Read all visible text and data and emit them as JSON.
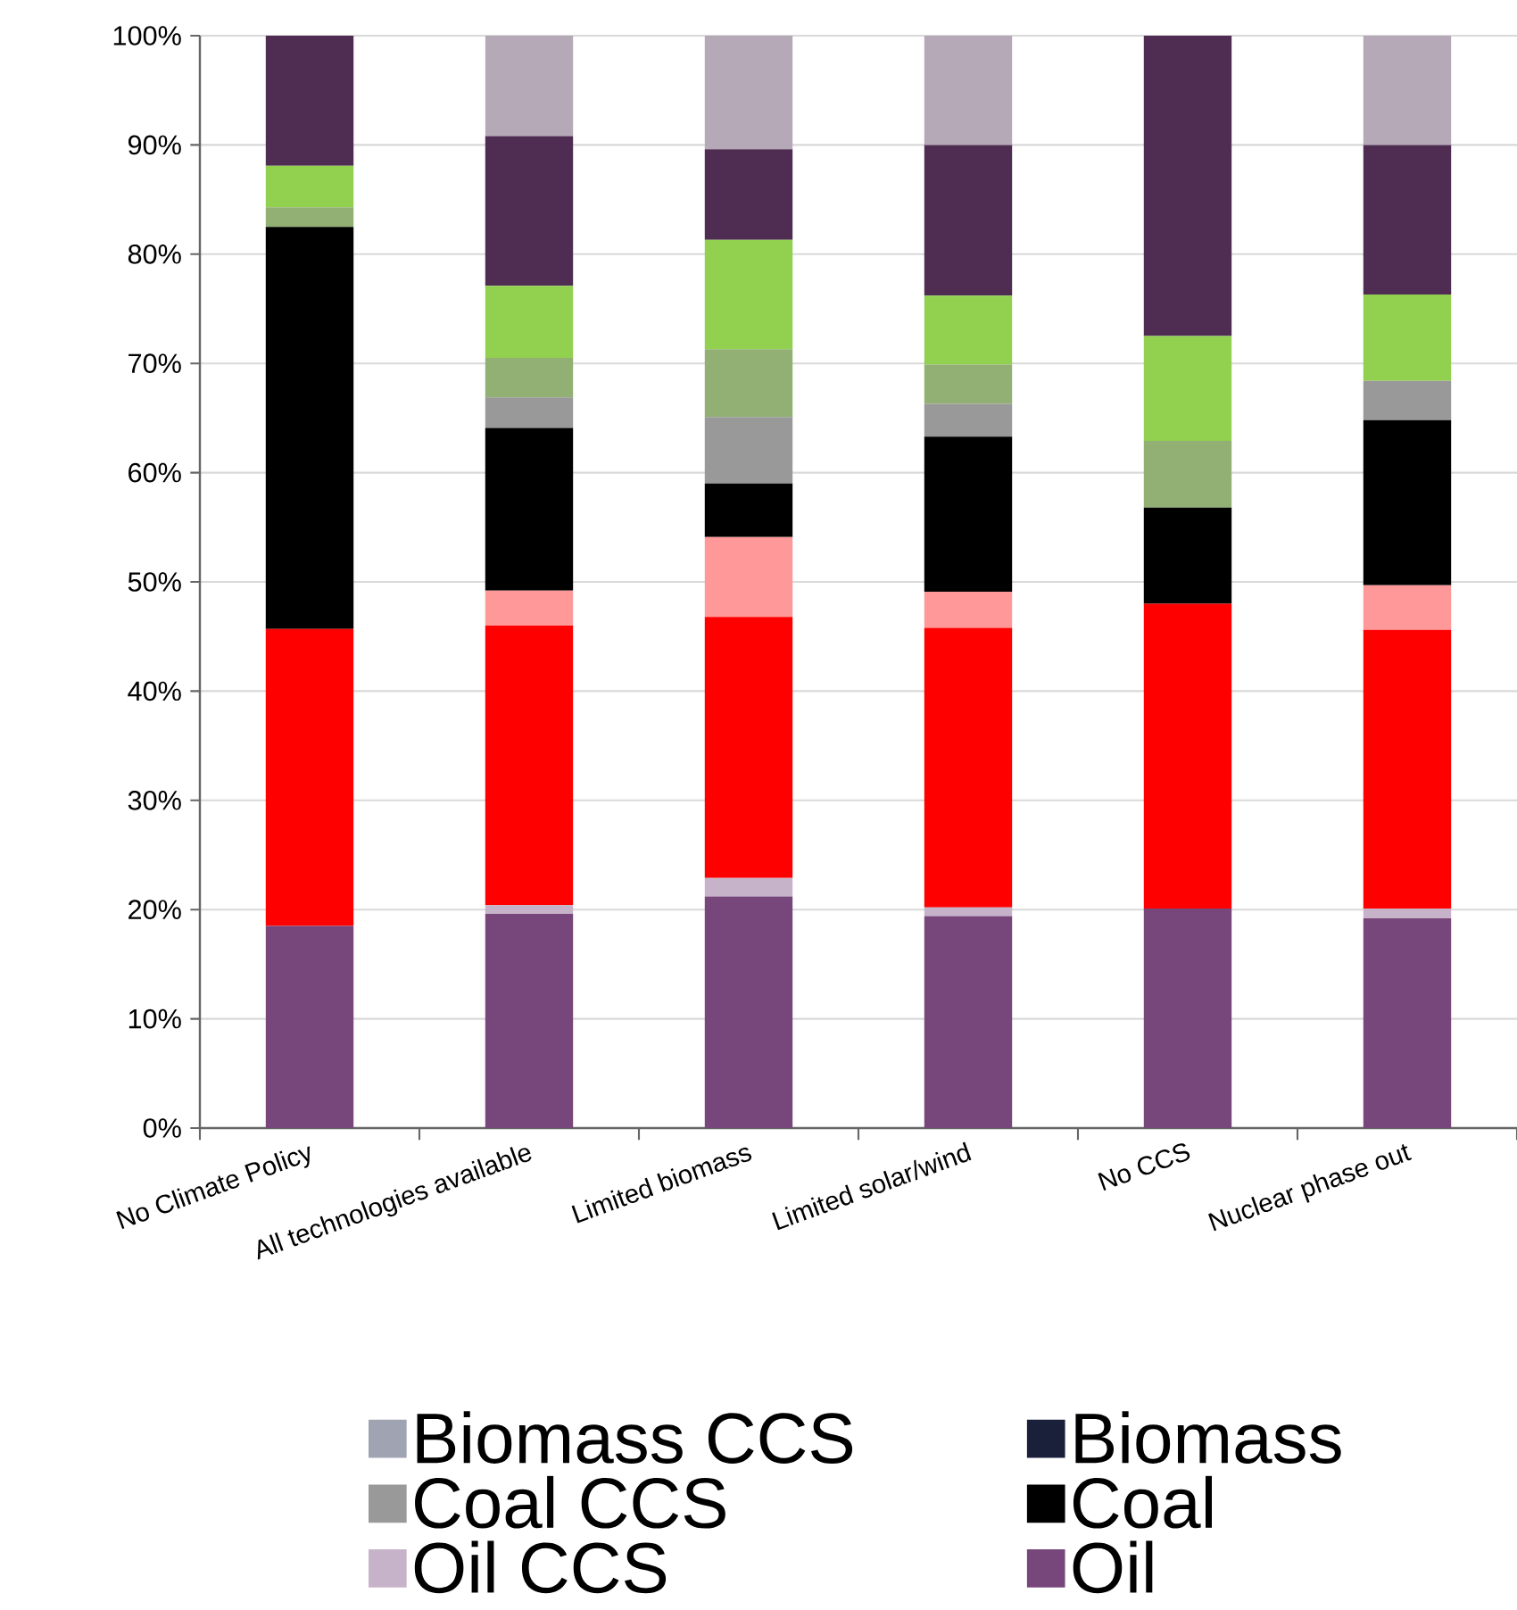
{
  "chart_data": {
    "type": "bar",
    "stacked": true,
    "categories": [
      "No Climate Policy",
      "All technologies available",
      "Limited biomass",
      "Limited solar/wind",
      "No CCS",
      "Nuclear phase out"
    ],
    "ylim": [
      0,
      100
    ],
    "yticks": [
      {
        "value": 0,
        "label": "0%"
      },
      {
        "value": 10,
        "label": "10%"
      },
      {
        "value": 20,
        "label": "20%"
      },
      {
        "value": 30,
        "label": "30%"
      },
      {
        "value": 40,
        "label": "40%"
      },
      {
        "value": 50,
        "label": "50%"
      },
      {
        "value": 60,
        "label": "60%"
      },
      {
        "value": 70,
        "label": "70%"
      },
      {
        "value": 80,
        "label": "80%"
      },
      {
        "value": 90,
        "label": "90%"
      },
      {
        "value": 100,
        "label": "100%"
      }
    ],
    "grid": "y",
    "legend": "bottom",
    "series": [
      {
        "name": "Oil",
        "color": "#77477b",
        "values": [
          18.5,
          19.6,
          21.2,
          19.4,
          20.1,
          19.2
        ]
      },
      {
        "name": "Oil CCS",
        "color": "#c7b3c9",
        "values": [
          0,
          0.8,
          1.7,
          0.8,
          0,
          0.9
        ]
      },
      {
        "color": "#ff0000",
        "values": [
          27.2,
          25.6,
          23.9,
          25.6,
          27.9,
          25.5
        ]
      },
      {
        "color": "#ff9999",
        "values": [
          0,
          3.2,
          7.3,
          3.3,
          0,
          4.1
        ]
      },
      {
        "name": "Coal",
        "color": "#000000",
        "values": [
          36.8,
          14.9,
          4.9,
          14.2,
          8.8,
          15.1
        ]
      },
      {
        "name": "Coal CCS",
        "color": "#999999",
        "values": [
          0,
          2.8,
          6.1,
          3.0,
          0,
          3.6
        ]
      },
      {
        "name": "Biomass",
        "color": "#1a1f3a",
        "values": [
          0,
          0,
          0,
          0,
          0,
          0
        ]
      },
      {
        "name": "Biomass CCS",
        "color": "#a0a4b2",
        "values": [
          0,
          0,
          0,
          0,
          0,
          0
        ]
      },
      {
        "color": "#92b073",
        "values": [
          1.8,
          3.6,
          6.2,
          3.6,
          6.1,
          0
        ]
      },
      {
        "color": "#92d050",
        "values": [
          3.8,
          6.6,
          10.0,
          6.3,
          9.6,
          7.9
        ]
      },
      {
        "color": "#4f2d52",
        "values": [
          11.9,
          13.7,
          8.3,
          13.8,
          27.5,
          13.7
        ]
      },
      {
        "color": "#b5a9b7",
        "values": [
          0,
          9.2,
          10.4,
          10.0,
          0,
          10.0
        ]
      }
    ]
  }
}
